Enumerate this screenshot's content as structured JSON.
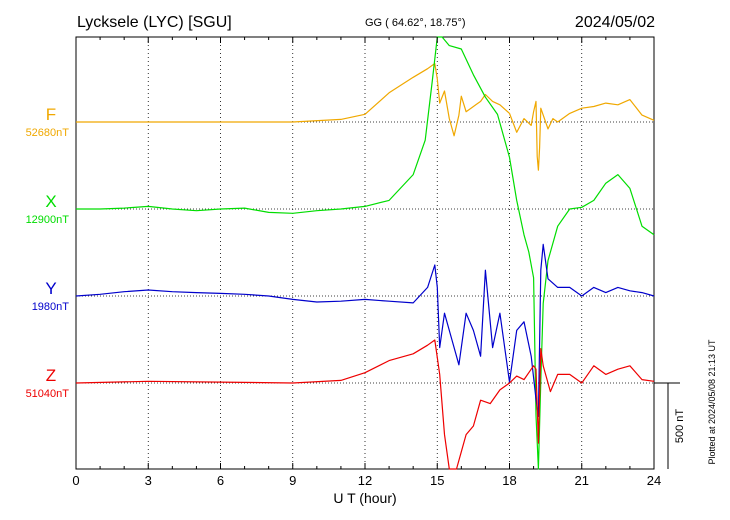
{
  "chart_data": {
    "type": "line",
    "title": "Lycksele (LYC)  [SGU]",
    "coords": "GG ( 64.62°,  18.75°)",
    "date": "2024/05/02",
    "xlabel": "U T (hour)",
    "xlim": [
      0,
      24
    ],
    "xticks": [
      0,
      3,
      6,
      9,
      12,
      15,
      18,
      21,
      24
    ],
    "scale_bar_label": "500 nT",
    "scale_bar_nT": 500,
    "plotted_note": "Plotted at 2024/05/08 21:13 UT",
    "grid": true,
    "series": [
      {
        "name": "F",
        "baseline_label": "52680nT",
        "color": "#f0a800",
        "x": [
          0,
          3,
          6,
          9,
          11,
          12,
          13,
          14,
          14.6,
          14.9,
          15.0,
          15.1,
          15.3,
          15.5,
          15.7,
          15.9,
          16.0,
          16.2,
          16.4,
          16.6,
          16.8,
          17.0,
          17.3,
          17.6,
          18.0,
          18.3,
          18.6,
          18.9,
          19.0,
          19.1,
          19.15,
          19.2,
          19.25,
          19.3,
          19.4,
          19.6,
          19.8,
          20.0,
          20.5,
          21.0,
          21.5,
          22.0,
          22.5,
          23.0,
          23.5,
          24.0
        ],
        "values": [
          0,
          0,
          0,
          0,
          15,
          45,
          170,
          260,
          310,
          340,
          250,
          110,
          180,
          20,
          -80,
          40,
          150,
          60,
          80,
          100,
          120,
          160,
          120,
          100,
          50,
          -60,
          20,
          -20,
          60,
          120,
          -200,
          -280,
          -150,
          80,
          40,
          -40,
          20,
          0,
          50,
          80,
          90,
          110,
          100,
          130,
          40,
          10
        ]
      },
      {
        "name": "X",
        "baseline_label": "12900nT",
        "color": "#00dd00",
        "x": [
          0,
          1,
          2,
          3,
          4,
          5,
          6,
          7,
          8,
          9,
          10,
          11,
          12,
          13,
          14,
          14.5,
          14.8,
          15.0,
          15.2,
          15.5,
          16.0,
          16.5,
          17.0,
          17.5,
          18.0,
          18.3,
          18.6,
          18.8,
          19.0,
          19.1,
          19.2,
          19.3,
          19.4,
          19.6,
          20.0,
          20.5,
          21.0,
          21.5,
          22.0,
          22.5,
          23.0,
          23.5,
          24.0
        ],
        "values": [
          0,
          0,
          5,
          15,
          0,
          -10,
          0,
          5,
          -20,
          -25,
          -10,
          0,
          15,
          50,
          200,
          400,
          750,
          1350,
          1150,
          950,
          930,
          780,
          650,
          550,
          300,
          50,
          -150,
          -250,
          -400,
          -1200,
          -2100,
          -1000,
          -550,
          -300,
          -100,
          0,
          10,
          50,
          150,
          200,
          120,
          -100,
          -150
        ]
      },
      {
        "name": "Y",
        "baseline_label": "1980nT",
        "color": "#0000cc",
        "x": [
          0,
          1,
          2,
          3,
          4,
          5,
          6,
          7,
          8,
          9,
          10,
          11,
          12,
          13,
          14,
          14.6,
          14.9,
          15.0,
          15.1,
          15.3,
          15.6,
          15.9,
          16.2,
          16.5,
          16.8,
          17.0,
          17.3,
          17.6,
          18.0,
          18.3,
          18.6,
          18.9,
          19.1,
          19.2,
          19.3,
          19.4,
          19.6,
          20.0,
          20.5,
          21.0,
          21.5,
          22.0,
          22.5,
          23.0,
          23.5,
          24.0
        ],
        "values": [
          0,
          10,
          25,
          35,
          25,
          20,
          15,
          10,
          0,
          -20,
          -35,
          -30,
          -20,
          -30,
          -40,
          50,
          180,
          50,
          -300,
          -100,
          -250,
          -400,
          -100,
          -200,
          -350,
          150,
          -300,
          -100,
          -500,
          -200,
          -150,
          -350,
          -600,
          -700,
          150,
          300,
          100,
          50,
          50,
          0,
          50,
          20,
          50,
          30,
          20,
          0
        ]
      },
      {
        "name": "Z",
        "baseline_label": "51040nT",
        "color": "#ee0000",
        "x": [
          0,
          3,
          6,
          9,
          11,
          12,
          13,
          14,
          14.6,
          14.9,
          15.1,
          15.3,
          15.5,
          15.8,
          16.0,
          16.2,
          16.5,
          16.8,
          17.2,
          17.6,
          18.0,
          18.3,
          18.6,
          18.9,
          19.0,
          19.1,
          19.2,
          19.3,
          19.4,
          19.7,
          20.0,
          20.5,
          21.0,
          21.5,
          22.0,
          22.5,
          23.0,
          23.5,
          24.0
        ],
        "values": [
          0,
          10,
          5,
          0,
          15,
          60,
          130,
          170,
          220,
          250,
          50,
          -300,
          -500,
          -550,
          -400,
          -300,
          -250,
          -100,
          -120,
          -40,
          0,
          40,
          20,
          80,
          100,
          80,
          -350,
          200,
          100,
          -50,
          50,
          50,
          0,
          100,
          50,
          80,
          100,
          20,
          10
        ]
      }
    ]
  }
}
